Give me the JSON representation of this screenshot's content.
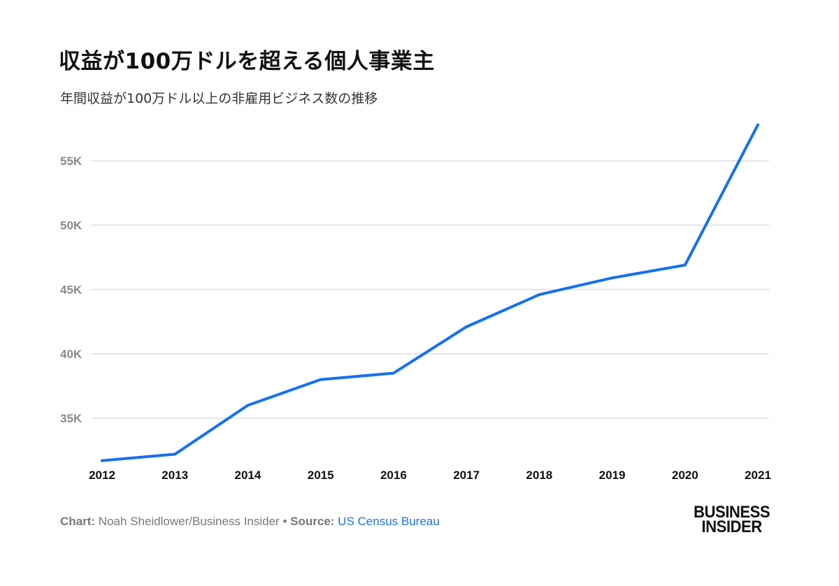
{
  "title": "収益が100万ドルを超える個人事業主",
  "subtitle": "年間収益が100万ドル以上の非雇用ビジネス数の推移",
  "footer": {
    "chart_label": "Chart:",
    "chart_author": "Noah Sheidlower/Business Insider",
    "separator": "•",
    "source_label": "Source:",
    "source_name": "US Census Bureau"
  },
  "logo": {
    "line1": "BUSINESS",
    "line2": "INSIDER"
  },
  "colors": {
    "line": "#1570ef",
    "grid": "#cccccc",
    "link": "#1a73e8"
  },
  "chart_data": {
    "type": "line",
    "categories": [
      "2012",
      "2013",
      "2014",
      "2015",
      "2016",
      "2017",
      "2018",
      "2019",
      "2020",
      "2021"
    ],
    "values": [
      31700,
      32200,
      36000,
      38000,
      38500,
      42100,
      44600,
      45900,
      46900,
      57800
    ],
    "yticks": [
      35000,
      40000,
      45000,
      50000,
      55000
    ],
    "ytick_labels": [
      "35K",
      "40K",
      "45K",
      "50K",
      "55K"
    ],
    "grid": true,
    "xlabel": "",
    "ylabel": ""
  }
}
